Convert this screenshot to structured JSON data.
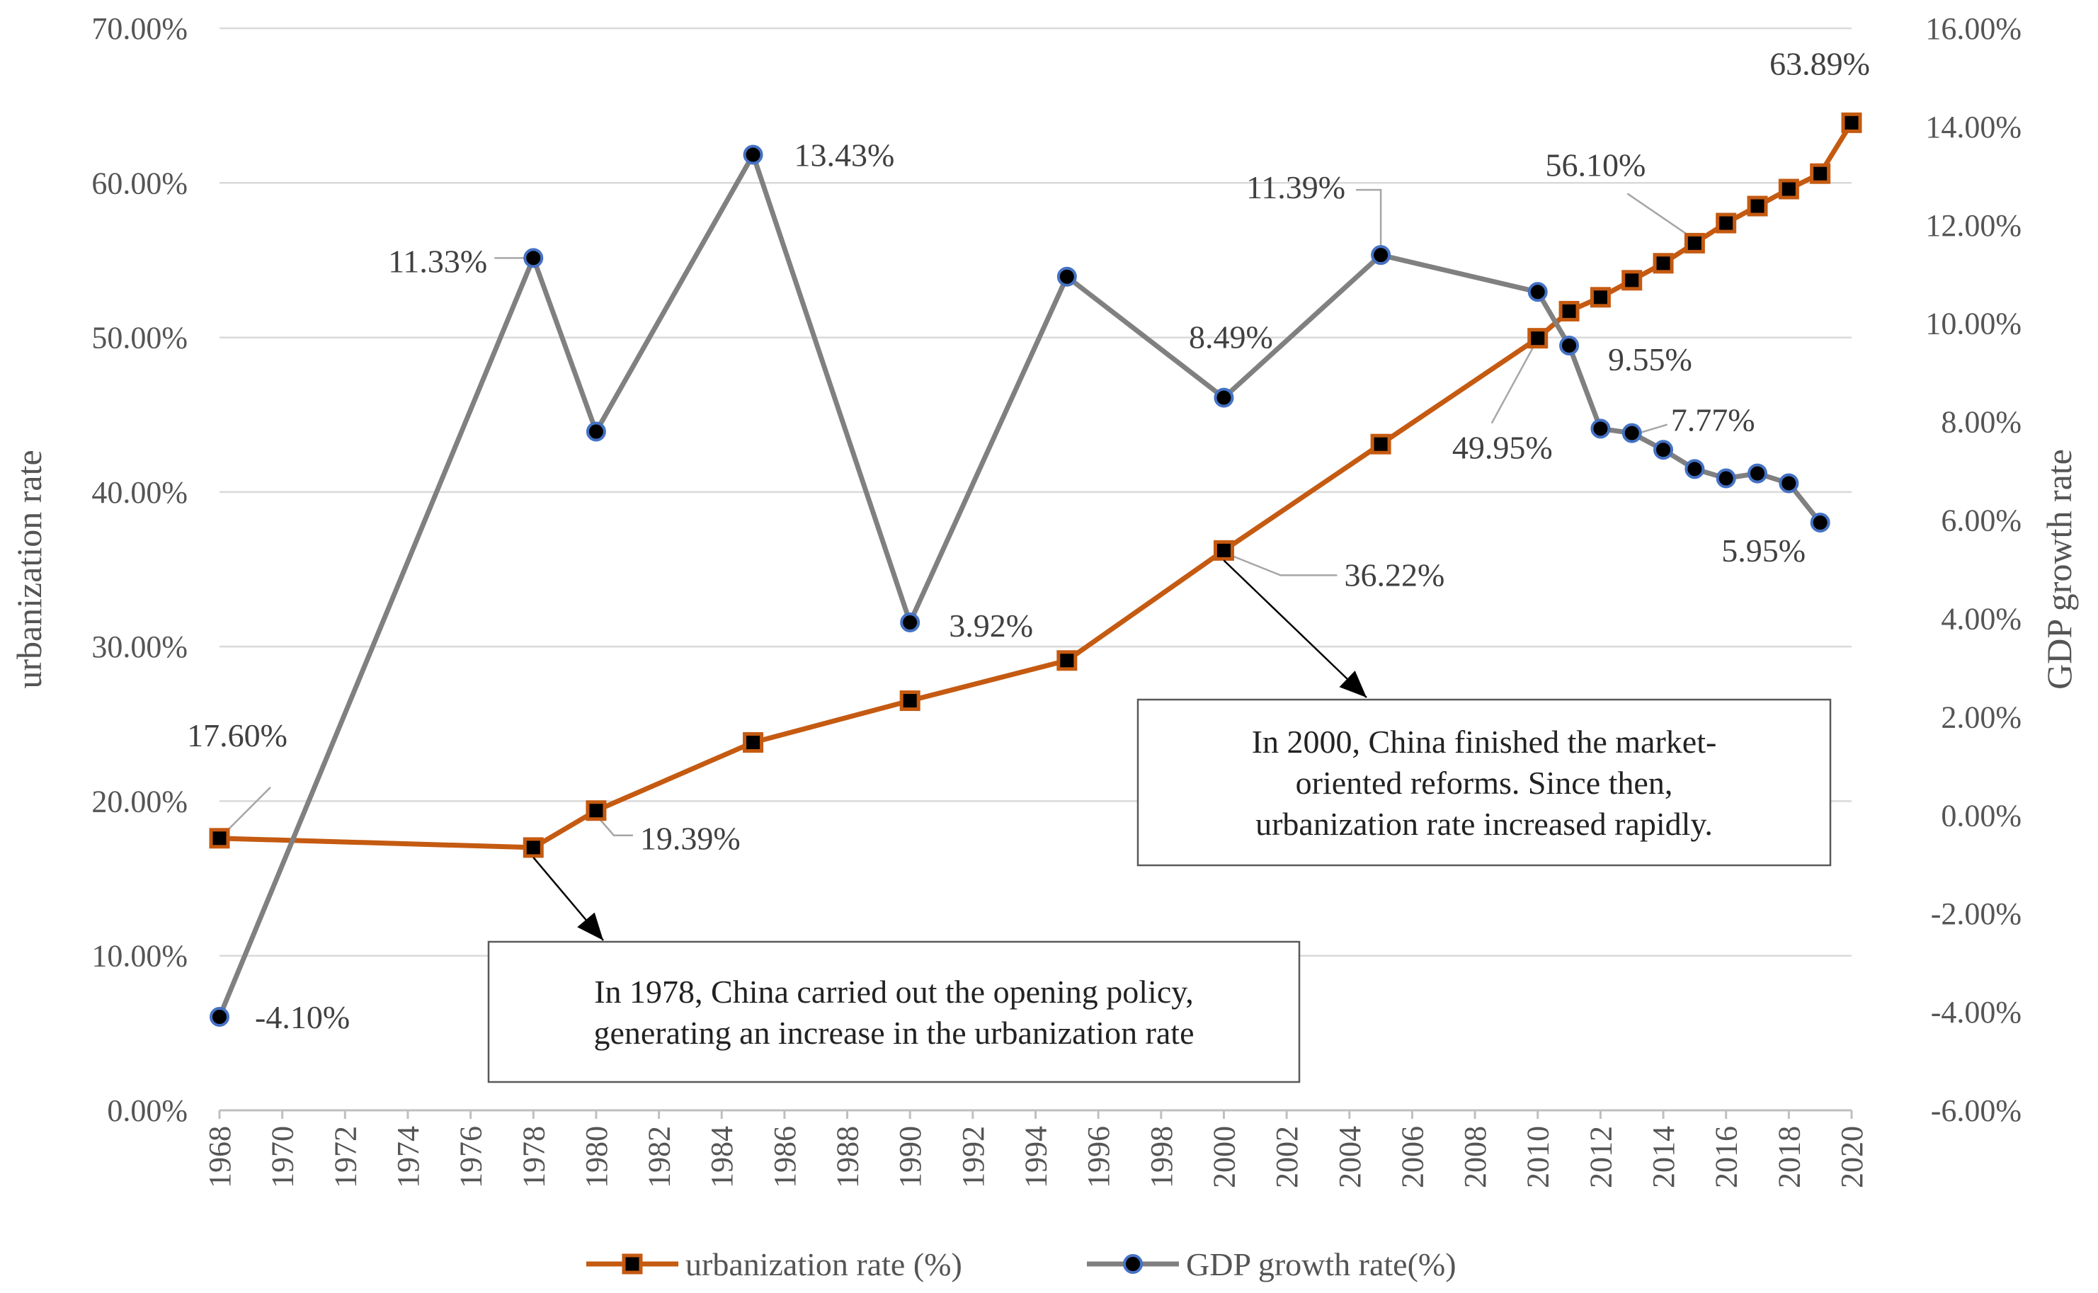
{
  "chart_data": {
    "type": "line",
    "x_ticks": [
      "1968",
      "1970",
      "1972",
      "1974",
      "1976",
      "1978",
      "1980",
      "1982",
      "1984",
      "1986",
      "1988",
      "1990",
      "1992",
      "1994",
      "1996",
      "1998",
      "2000",
      "2002",
      "2004",
      "2006",
      "2008",
      "2010",
      "2012",
      "2014",
      "2016",
      "2018",
      "2020"
    ],
    "xlim": [
      1968,
      2020
    ],
    "y_left": {
      "label": "urbanization rate",
      "ticks": [
        "0.00%",
        "10.00%",
        "20.00%",
        "30.00%",
        "40.00%",
        "50.00%",
        "60.00%",
        "70.00%"
      ],
      "range": [
        0,
        70
      ]
    },
    "y_right": {
      "label": "GDP growth rate",
      "ticks": [
        "-6.00%",
        "-4.00%",
        "-2.00%",
        "0.00%",
        "2.00%",
        "4.00%",
        "6.00%",
        "8.00%",
        "10.00%",
        "12.00%",
        "14.00%",
        "16.00%"
      ],
      "range": [
        -6,
        16
      ]
    },
    "grid": true,
    "legend_position": "bottom",
    "series": [
      {
        "name": "urbanization rate (%)",
        "axis": "left",
        "color": "#c55a11",
        "marker": "square",
        "x": [
          1968,
          1978,
          1980,
          1985,
          1990,
          1995,
          2000,
          2005,
          2010,
          2011,
          2012,
          2013,
          2014,
          2015,
          2016,
          2017,
          2018,
          2019,
          2020
        ],
        "values": [
          17.6,
          17.0,
          19.39,
          23.8,
          26.5,
          29.1,
          36.22,
          43.1,
          49.95,
          51.7,
          52.6,
          53.7,
          54.8,
          56.1,
          57.4,
          58.5,
          59.6,
          60.6,
          63.89
        ],
        "labels": [
          {
            "x": 1968,
            "text": "17.60%"
          },
          {
            "x": 1980,
            "text": "19.39%"
          },
          {
            "x": 2000,
            "text": "36.22%"
          },
          {
            "x": 2010,
            "text": "49.95%"
          },
          {
            "x": 2015,
            "text": "56.10%"
          },
          {
            "x": 2020,
            "text": "63.89%"
          }
        ]
      },
      {
        "name": "GDP growth rate(%)",
        "axis": "right",
        "color": "#808080",
        "marker": "circle",
        "x": [
          1968,
          1978,
          1980,
          1985,
          1990,
          1995,
          2000,
          2005,
          2010,
          2011,
          2012,
          2013,
          2014,
          2015,
          2016,
          2017,
          2018,
          2019
        ],
        "values": [
          -4.1,
          11.33,
          7.8,
          13.43,
          3.92,
          10.95,
          8.49,
          11.39,
          10.64,
          9.55,
          7.86,
          7.77,
          7.43,
          7.04,
          6.85,
          6.95,
          6.75,
          5.95
        ],
        "labels": [
          {
            "x": 1968,
            "text": "-4.10%"
          },
          {
            "x": 1978,
            "text": "11.33%"
          },
          {
            "x": 1985,
            "text": "13.43%"
          },
          {
            "x": 1990,
            "text": "3.92%"
          },
          {
            "x": 2000,
            "text": "8.49%"
          },
          {
            "x": 2005,
            "text": "11.39%"
          },
          {
            "x": 2011,
            "text": "9.55%"
          },
          {
            "x": 2013,
            "text": "7.77%"
          },
          {
            "x": 2019,
            "text": "5.95%"
          }
        ]
      }
    ],
    "annotations": [
      {
        "lines": [
          "In 1978, China carried out the opening policy,",
          "generating an increase in the urbanization rate"
        ]
      },
      {
        "lines": [
          "In 2000, China finished the market-",
          "oriented reforms. Since then,",
          "urbanization rate increased rapidly."
        ]
      }
    ]
  }
}
